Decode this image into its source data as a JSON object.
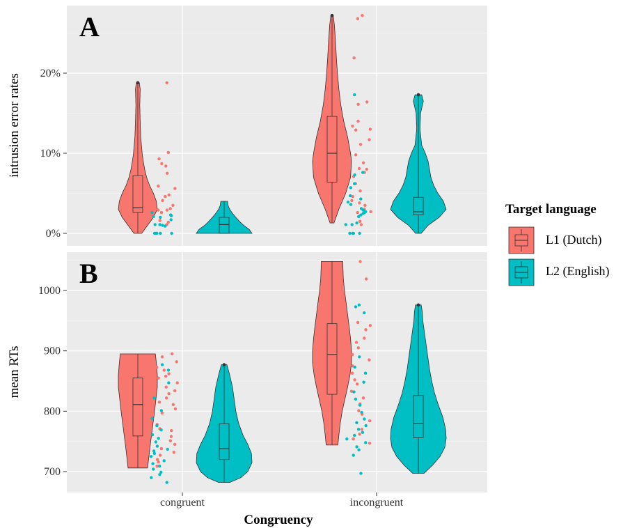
{
  "colors": {
    "l1": "#F8766D",
    "l2": "#00BFC4",
    "panel_bg": "#EBEBEB",
    "grid_major": "#FFFFFF",
    "grid_minor": "#F4F4F4",
    "outline": "#333333"
  },
  "x_axis": {
    "title": "Congruency",
    "categories": [
      "congruent",
      "incongruent"
    ]
  },
  "legend": {
    "title": "Target language",
    "entries": [
      "L1  (Dutch)",
      "L2 (English)"
    ]
  },
  "chart_data": [
    {
      "type": "violin",
      "panel_label": "A",
      "ylabel": "intrusion error rates",
      "ylim": [
        -0.02,
        0.28
      ],
      "yticks": [
        0,
        0.1,
        0.2
      ],
      "ytick_labels": [
        "0%",
        "10%",
        "20%"
      ],
      "groups": [
        {
          "category": "congruent",
          "series": "L1",
          "violin_profile": [
            [
              0,
              0.2
            ],
            [
              0.01,
              0.5
            ],
            [
              0.02,
              0.8
            ],
            [
              0.03,
              1.0
            ],
            [
              0.04,
              0.95
            ],
            [
              0.05,
              0.8
            ],
            [
              0.06,
              0.6
            ],
            [
              0.07,
              0.45
            ],
            [
              0.08,
              0.35
            ],
            [
              0.09,
              0.28
            ],
            [
              0.1,
              0.22
            ],
            [
              0.12,
              0.15
            ],
            [
              0.14,
              0.12
            ],
            [
              0.16,
              0.1
            ],
            [
              0.18,
              0.12
            ],
            [
              0.188,
              0.08
            ]
          ],
          "box": {
            "q1": 0.026,
            "median": 0.032,
            "q3": 0.072,
            "whisker_low": 0.0,
            "whisker_high": 0.188
          },
          "outliers": [
            0.188
          ],
          "points": [
            0.188,
            0.101,
            0.093,
            0.087,
            0.084,
            0.075,
            0.059,
            0.056,
            0.048,
            0.046,
            0.041,
            0.035,
            0.031,
            0.029,
            0.029,
            0.026,
            0.023,
            0.016,
            0.014,
            0.011,
            0.0
          ]
        },
        {
          "category": "congruent",
          "series": "L2",
          "violin_profile": [
            [
              0,
              1.0
            ],
            [
              0.005,
              0.9
            ],
            [
              0.01,
              0.7
            ],
            [
              0.015,
              0.55
            ],
            [
              0.02,
              0.42
            ],
            [
              0.025,
              0.3
            ],
            [
              0.03,
              0.2
            ],
            [
              0.035,
              0.14
            ],
            [
              0.04,
              0.12
            ]
          ],
          "box": {
            "q1": 0.0,
            "median": 0.011,
            "q3": 0.02,
            "whisker_low": 0.0,
            "whisker_high": 0.04
          },
          "outliers": [],
          "points": [
            0.026,
            0.023,
            0.022,
            0.021,
            0.02,
            0.017,
            0.011,
            0.011,
            0.01,
            0.009,
            0.0,
            0.0,
            0.0,
            0.0,
            0.0
          ]
        },
        {
          "category": "incongruent",
          "series": "L1",
          "violin_profile": [
            [
              0.013,
              0.1
            ],
            [
              0.03,
              0.35
            ],
            [
              0.05,
              0.7
            ],
            [
              0.07,
              0.95
            ],
            [
              0.09,
              1.0
            ],
            [
              0.1,
              0.95
            ],
            [
              0.12,
              0.8
            ],
            [
              0.14,
              0.6
            ],
            [
              0.16,
              0.45
            ],
            [
              0.18,
              0.35
            ],
            [
              0.2,
              0.28
            ],
            [
              0.22,
              0.22
            ],
            [
              0.24,
              0.18
            ],
            [
              0.26,
              0.12
            ],
            [
              0.272,
              0.06
            ]
          ],
          "box": {
            "q1": 0.064,
            "median": 0.1,
            "q3": 0.146,
            "whisker_low": 0.013,
            "whisker_high": 0.272
          },
          "outliers": [
            0.272
          ],
          "points": [
            0.272,
            0.268,
            0.219,
            0.164,
            0.161,
            0.14,
            0.134,
            0.13,
            0.129,
            0.117,
            0.111,
            0.098,
            0.088,
            0.081,
            0.08,
            0.076,
            0.071,
            0.062,
            0.053,
            0.046,
            0.041,
            0.038,
            0.035,
            0.03,
            0.027,
            0.026,
            0.015,
            0.011
          ]
        },
        {
          "category": "incongruent",
          "series": "L2",
          "violin_profile": [
            [
              0,
              0.1
            ],
            [
              0.01,
              0.35
            ],
            [
              0.02,
              0.75
            ],
            [
              0.03,
              1.0
            ],
            [
              0.04,
              0.9
            ],
            [
              0.05,
              0.7
            ],
            [
              0.06,
              0.55
            ],
            [
              0.07,
              0.45
            ],
            [
              0.08,
              0.4
            ],
            [
              0.09,
              0.35
            ],
            [
              0.1,
              0.25
            ],
            [
              0.11,
              0.12
            ],
            [
              0.13,
              0.06
            ],
            [
              0.15,
              0.08
            ],
            [
              0.165,
              0.18
            ],
            [
              0.173,
              0.12
            ]
          ],
          "box": {
            "q1": 0.023,
            "median": 0.027,
            "q3": 0.045,
            "whisker_low": 0.0,
            "whisker_high": 0.173
          },
          "outliers": [
            0.173
          ],
          "points": [
            0.173,
            0.076,
            0.073,
            0.062,
            0.057,
            0.047,
            0.043,
            0.039,
            0.036,
            0.031,
            0.029,
            0.027,
            0.026,
            0.025,
            0.023,
            0.021,
            0.013,
            0.011,
            0.011,
            0.0,
            0.0,
            0.0,
            0.0
          ]
        }
      ]
    },
    {
      "type": "violin",
      "panel_label": "B",
      "ylabel": "mean RTs",
      "ylim": [
        670,
        1060
      ],
      "yticks": [
        700,
        800,
        900,
        1000
      ],
      "ytick_labels": [
        "700",
        "800",
        "900",
        "1000"
      ],
      "groups": [
        {
          "category": "congruent",
          "series": "L1",
          "violin_profile": [
            [
              706,
              0.5
            ],
            [
              720,
              0.55
            ],
            [
              740,
              0.62
            ],
            [
              760,
              0.7
            ],
            [
              780,
              0.78
            ],
            [
              800,
              0.86
            ],
            [
              820,
              0.93
            ],
            [
              840,
              1.0
            ],
            [
              860,
              1.0
            ],
            [
              880,
              0.95
            ],
            [
              895,
              0.9
            ]
          ],
          "box": {
            "q1": 759,
            "median": 811,
            "q3": 855,
            "whisker_low": 706,
            "whisker_high": 895
          },
          "outliers": [],
          "points": [
            895,
            890,
            882,
            873,
            868,
            862,
            858,
            855,
            847,
            840,
            834,
            829,
            822,
            815,
            811,
            804,
            797,
            778,
            771,
            768,
            758,
            751,
            745,
            738,
            732,
            727,
            720,
            716,
            709
          ]
        },
        {
          "category": "congruent",
          "series": "L2",
          "violin_profile": [
            [
              682,
              0.2
            ],
            [
              690,
              0.6
            ],
            [
              700,
              0.85
            ],
            [
              715,
              1.0
            ],
            [
              730,
              0.98
            ],
            [
              745,
              0.85
            ],
            [
              760,
              0.68
            ],
            [
              780,
              0.52
            ],
            [
              800,
              0.42
            ],
            [
              820,
              0.36
            ],
            [
              840,
              0.3
            ],
            [
              860,
              0.2
            ],
            [
              877,
              0.1
            ]
          ],
          "box": {
            "q1": 720,
            "median": 738,
            "q3": 779,
            "whisker_low": 682,
            "whisker_high": 877
          },
          "outliers": [
            877
          ],
          "points": [
            877,
            868,
            847,
            822,
            801,
            788,
            776,
            769,
            761,
            755,
            749,
            742,
            737,
            734,
            730,
            725,
            718,
            713,
            709,
            704,
            699,
            695,
            690,
            682
          ]
        },
        {
          "category": "incongruent",
          "series": "L1",
          "violin_profile": [
            [
              744,
              0.3
            ],
            [
              760,
              0.35
            ],
            [
              780,
              0.42
            ],
            [
              800,
              0.52
            ],
            [
              820,
              0.66
            ],
            [
              840,
              0.8
            ],
            [
              860,
              0.92
            ],
            [
              880,
              1.0
            ],
            [
              900,
              1.0
            ],
            [
              920,
              0.95
            ],
            [
              940,
              0.88
            ],
            [
              960,
              0.8
            ],
            [
              980,
              0.72
            ],
            [
              1000,
              0.64
            ],
            [
              1020,
              0.58
            ],
            [
              1048,
              0.55
            ]
          ],
          "box": {
            "q1": 828,
            "median": 894,
            "q3": 945,
            "whisker_low": 744,
            "whisker_high": 1048
          },
          "outliers": [],
          "points": [
            1048,
            1019,
            947,
            942,
            935,
            921,
            914,
            905,
            894,
            885,
            875,
            863,
            852,
            845,
            833,
            822,
            812,
            801,
            795,
            784,
            770,
            762,
            754,
            747
          ]
        },
        {
          "category": "incongruent",
          "series": "L2",
          "violin_profile": [
            [
              697,
              0.2
            ],
            [
              710,
              0.5
            ],
            [
              725,
              0.78
            ],
            [
              740,
              0.95
            ],
            [
              755,
              1.0
            ],
            [
              770,
              0.98
            ],
            [
              790,
              0.88
            ],
            [
              810,
              0.72
            ],
            [
              830,
              0.58
            ],
            [
              850,
              0.48
            ],
            [
              870,
              0.4
            ],
            [
              890,
              0.34
            ],
            [
              910,
              0.28
            ],
            [
              930,
              0.22
            ],
            [
              950,
              0.16
            ],
            [
              965,
              0.14
            ],
            [
              976,
              0.1
            ]
          ],
          "box": {
            "q1": 756,
            "median": 780,
            "q3": 826,
            "whisker_low": 697,
            "whisker_high": 976
          },
          "outliers": [
            976
          ],
          "points": [
            976,
            973,
            963,
            890,
            873,
            863,
            848,
            832,
            820,
            810,
            798,
            787,
            781,
            776,
            770,
            765,
            760,
            754,
            748,
            741,
            736,
            727,
            697
          ]
        }
      ]
    }
  ]
}
